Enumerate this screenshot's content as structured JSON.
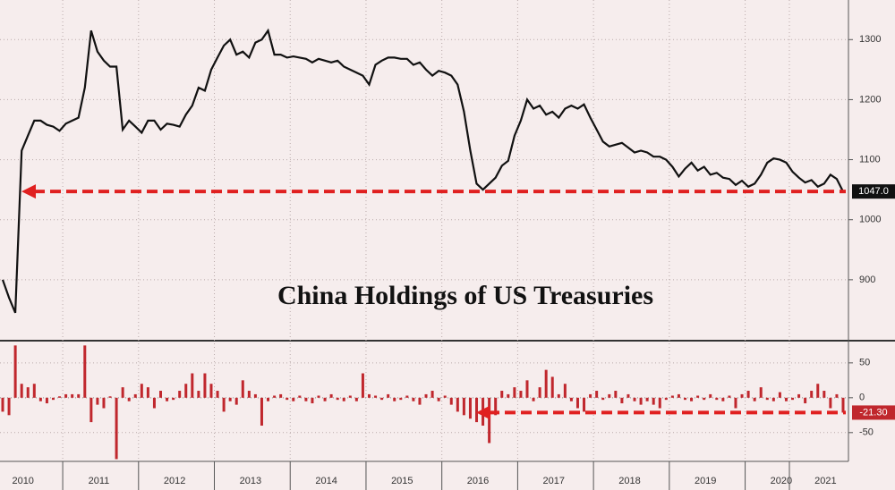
{
  "chart_data": [
    {
      "type": "line",
      "title": "China Holdings of US Treasuries",
      "color": "#111111",
      "values": [
        900,
        870,
        845,
        1115,
        1140,
        1165,
        1165,
        1158,
        1155,
        1148,
        1160,
        1165,
        1170,
        1220,
        1315,
        1280,
        1265,
        1255,
        1255,
        1150,
        1165,
        1155,
        1145,
        1165,
        1165,
        1150,
        1160,
        1158,
        1155,
        1175,
        1190,
        1220,
        1215,
        1250,
        1270,
        1290,
        1300,
        1275,
        1280,
        1270,
        1295,
        1300,
        1315,
        1275,
        1275,
        1270,
        1272,
        1270,
        1268,
        1262,
        1268,
        1265,
        1262,
        1265,
        1255,
        1250,
        1245,
        1240,
        1225,
        1258,
        1265,
        1270,
        1270,
        1268,
        1268,
        1258,
        1262,
        1250,
        1240,
        1248,
        1245,
        1240,
        1225,
        1180,
        1115,
        1060,
        1050,
        1060,
        1070,
        1090,
        1098,
        1140,
        1165,
        1200,
        1185,
        1190,
        1175,
        1180,
        1170,
        1185,
        1190,
        1185,
        1192,
        1170,
        1150,
        1130,
        1122,
        1125,
        1128,
        1120,
        1112,
        1115,
        1112,
        1105,
        1105,
        1100,
        1088,
        1072,
        1085,
        1095,
        1082,
        1088,
        1075,
        1078,
        1070,
        1068,
        1058,
        1065,
        1055,
        1060,
        1075,
        1095,
        1102,
        1100,
        1095,
        1080,
        1070,
        1062,
        1066,
        1055,
        1060,
        1075,
        1068,
        1047
      ],
      "value_labels": {
        "133": "1047.0"
      },
      "ylim": [
        800,
        1360
      ],
      "yticks": [
        900,
        1000,
        1100,
        1200,
        1300
      ],
      "grid": true
    },
    {
      "type": "bar",
      "color": "#c0272d",
      "categories": [
        null,
        null,
        null,
        "2010",
        null,
        null,
        null,
        null,
        null,
        null,
        null,
        null,
        null,
        null,
        null,
        "2011",
        null,
        null,
        null,
        null,
        null,
        null,
        null,
        null,
        null,
        null,
        null,
        "2012",
        null,
        null,
        null,
        null,
        null,
        null,
        null,
        null,
        null,
        null,
        null,
        "2013",
        null,
        null,
        null,
        null,
        null,
        null,
        null,
        null,
        null,
        null,
        null,
        "2014",
        null,
        null,
        null,
        null,
        null,
        null,
        null,
        null,
        null,
        null,
        null,
        "2015",
        null,
        null,
        null,
        null,
        null,
        null,
        null,
        null,
        null,
        null,
        null,
        "2016",
        null,
        null,
        null,
        null,
        null,
        null,
        null,
        null,
        null,
        null,
        null,
        "2017",
        null,
        null,
        null,
        null,
        null,
        null,
        null,
        null,
        null,
        null,
        null,
        "2018",
        null,
        null,
        null,
        null,
        null,
        null,
        null,
        null,
        null,
        null,
        null,
        "2019",
        null,
        null,
        null,
        null,
        null,
        null,
        null,
        null,
        null,
        null,
        null,
        "2020",
        null,
        null,
        null,
        null,
        null,
        null,
        "2021",
        null,
        null,
        null
      ],
      "values": [
        -20,
        -25,
        75,
        20,
        15,
        20,
        -5,
        -8,
        -3,
        2,
        5,
        5,
        5,
        75,
        -35,
        -10,
        -15,
        2,
        -88,
        15,
        -5,
        5,
        20,
        15,
        -15,
        10,
        -5,
        -3,
        10,
        20,
        35,
        10,
        35,
        20,
        10,
        -20,
        -5,
        -10,
        25,
        10,
        5,
        -40,
        -5,
        3,
        5,
        -3,
        -5,
        3,
        -5,
        -8,
        3,
        -5,
        5,
        -3,
        -5,
        3,
        -5,
        35,
        5,
        3,
        -3,
        5,
        -5,
        -3,
        3,
        -5,
        -10,
        5,
        10,
        -5,
        3,
        -10,
        -20,
        -25,
        -30,
        -35,
        -40,
        -65,
        -25,
        10,
        5,
        15,
        10,
        25,
        -5,
        15,
        40,
        30,
        5,
        20,
        -5,
        -15,
        -20,
        5,
        10,
        -3,
        5,
        10,
        -8,
        5,
        -5,
        -10,
        -5,
        -10,
        -15,
        -3,
        3,
        5,
        -3,
        -5,
        3,
        -3,
        5,
        -3,
        -5,
        3,
        -15,
        5,
        10,
        -5,
        15,
        -3,
        -5,
        8,
        -5,
        -3,
        5,
        -8,
        10,
        20,
        10,
        -15,
        5,
        -21.3
      ],
      "value_labels": {
        "133": "-21.30"
      },
      "ylim": [
        -90,
        78
      ],
      "yticks": [
        -50,
        0,
        50
      ],
      "grid": true
    }
  ]
}
